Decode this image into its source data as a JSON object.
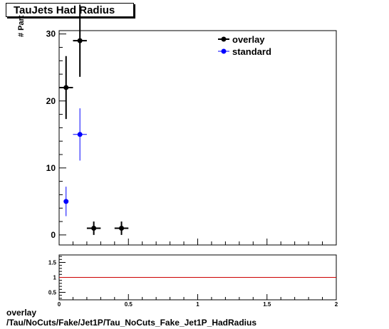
{
  "header": {
    "title": "TauJets Had Radius"
  },
  "footer": {
    "line1": "overlay",
    "line2": "/Tau/NoCuts/Fake/Jet1P/Tau_NoCuts_Fake_Jet1P_HadRadius"
  },
  "colors": {
    "overlay": "#000000",
    "standard": "#0000ff",
    "ratio_line": "#cc0000"
  },
  "chart_data": [
    {
      "type": "scatter",
      "title": "TauJets Had Radius",
      "ylabel": "# Part",
      "xlim": [
        0,
        2
      ],
      "ylim": [
        -1.5,
        30.5
      ],
      "yticks": [
        0,
        10,
        20,
        30
      ],
      "legend": "top-right",
      "series": [
        {
          "name": "overlay",
          "color": "#000000",
          "points": [
            {
              "x": 0.05,
              "y": 22,
              "xerr": 0.05,
              "yerr": 4.7
            },
            {
              "x": 0.15,
              "y": 29,
              "xerr": 0.05,
              "yerr": 5.4
            },
            {
              "x": 0.25,
              "y": 1,
              "xerr": 0.05,
              "yerr": 1
            },
            {
              "x": 0.45,
              "y": 1,
              "xerr": 0.05,
              "yerr": 1
            }
          ]
        },
        {
          "name": "standard",
          "color": "#0000ff",
          "points": [
            {
              "x": 0.05,
              "y": 5,
              "xerr": 0.0,
              "yerr": 2.2
            },
            {
              "x": 0.15,
              "y": 15,
              "xerr": 0.05,
              "yerr": 3.9
            }
          ]
        }
      ]
    },
    {
      "type": "line",
      "xlim": [
        0,
        2
      ],
      "ylim": [
        0.25,
        1.75
      ],
      "yticks": [
        0.5,
        1,
        1.5
      ],
      "ytick_labels": [
        "0.5",
        "1",
        "1.5"
      ],
      "xticks": [
        0,
        0.5,
        1,
        1.5,
        2
      ],
      "xtick_labels": [
        "0",
        "0.5",
        "1",
        "1.5",
        "2"
      ],
      "reference_line": 1
    }
  ]
}
